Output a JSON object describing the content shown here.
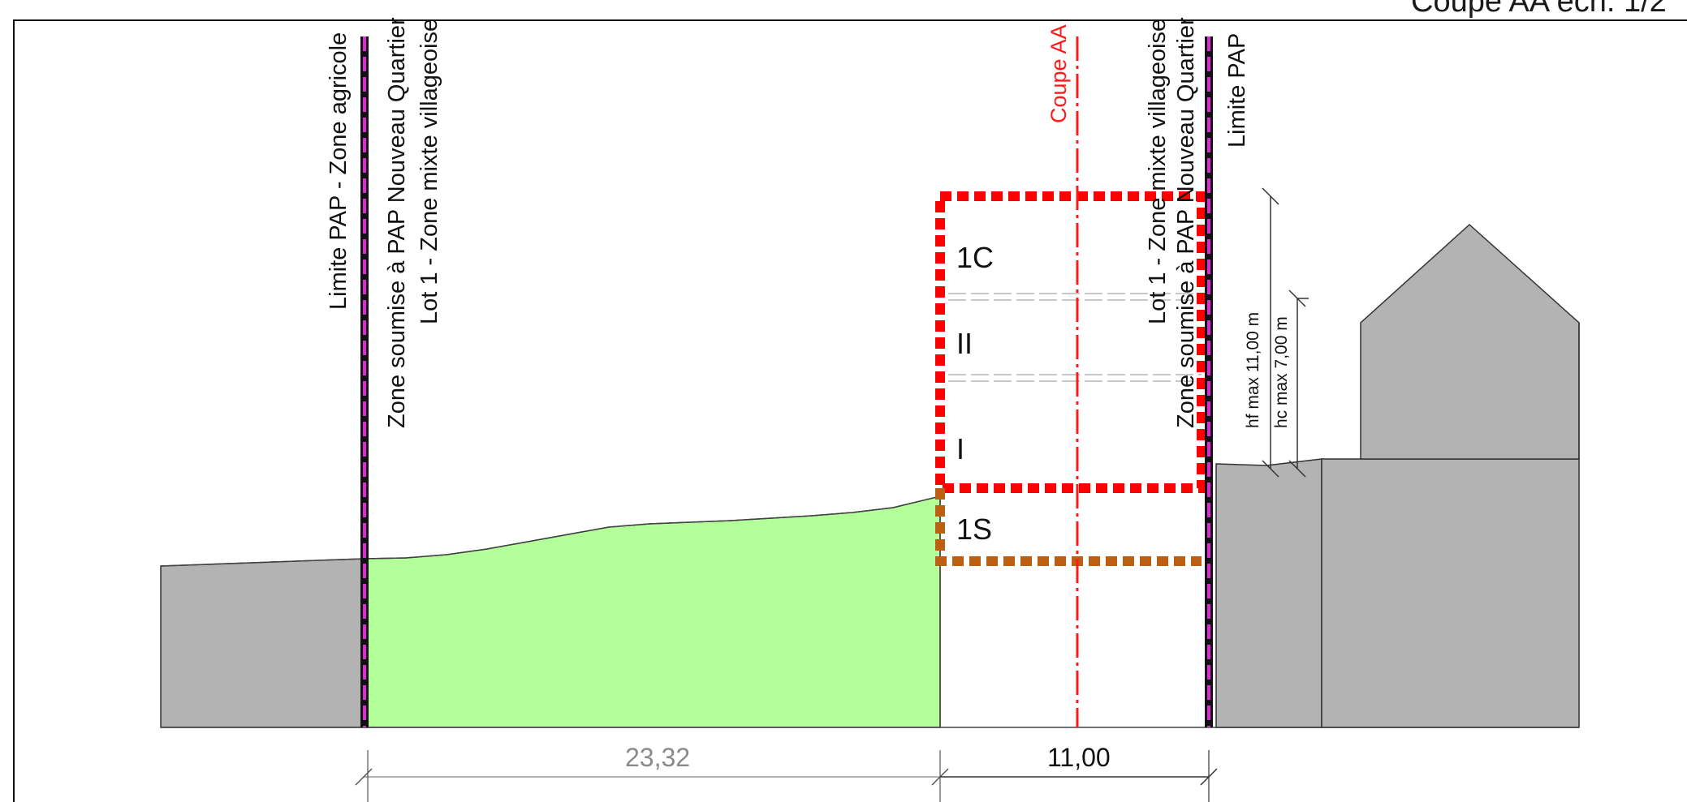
{
  "title": "Coupe AA éch. 1/2",
  "boundary_labels": {
    "left_limit": "Limite PAP - Zone agricole",
    "left_zone_line1": "Zone soumise à PAP Nouveau Quartier",
    "left_zone_line2": "Lot 1 - Zone mixte villageoise",
    "section_line": "Coupe AA",
    "right_zone_line1": "Lot 1 - Zone mixte villageoise",
    "right_zone_line2": "Zone soumise à PAP Nouveau Quartier",
    "right_limit": "Limite PAP"
  },
  "levels": {
    "attic": "1C",
    "second": "II",
    "first": "I",
    "basement": "1S"
  },
  "heights": {
    "hf": "hf max 11,00 m",
    "hc": "hc max 7,00 m"
  },
  "dimensions": {
    "garden_width": "23,32",
    "building_width": "11,00"
  },
  "colors": {
    "boundary_magenta": "#e02ad6",
    "building_envelope": "#ff0000",
    "basement_envelope": "#bd5f12",
    "garden_green": "#b3ff9a",
    "ground_gray": "#b3b3b3",
    "section_red": "#ff1a1a"
  }
}
